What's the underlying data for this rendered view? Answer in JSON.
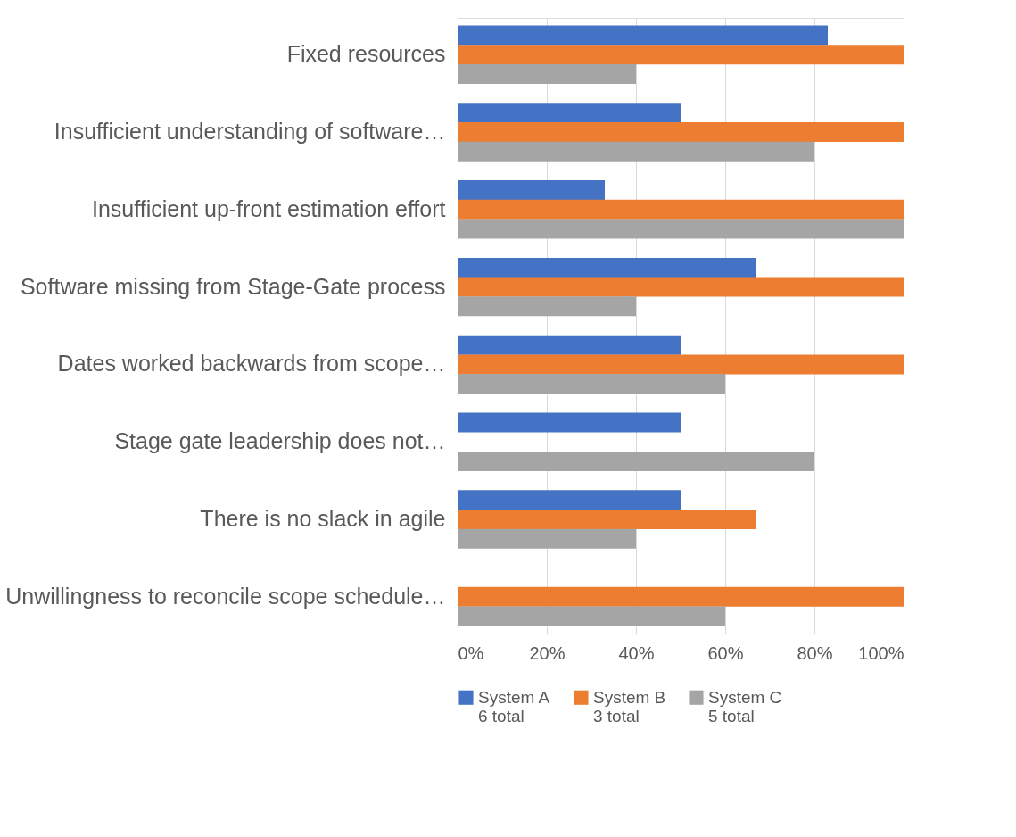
{
  "chart_data": {
    "type": "bar",
    "orientation": "horizontal",
    "categories": [
      "Fixed resources",
      "Insufficient understanding of software…",
      "Insufficient up-front estimation effort",
      "Software missing from Stage-Gate process",
      "Dates worked backwards from scope…",
      "Stage gate leadership does not…",
      "There is no slack in agile",
      "Unwillingness to reconcile scope schedule…"
    ],
    "series": [
      {
        "name": "System A\n6 total",
        "color": "#4472c4",
        "values": [
          83,
          50,
          33,
          67,
          50,
          50,
          50,
          0
        ]
      },
      {
        "name": "System B\n3 total",
        "color": "#ed7d31",
        "values": [
          100,
          100,
          100,
          100,
          100,
          0,
          67,
          100
        ]
      },
      {
        "name": "System C\n5 total",
        "color": "#a5a5a5",
        "values": [
          40,
          80,
          100,
          40,
          60,
          80,
          40,
          60
        ]
      }
    ],
    "xlim": [
      0,
      100
    ],
    "xticks": [
      {
        "value": 0,
        "label": "0%"
      },
      {
        "value": 20,
        "label": "20%"
      },
      {
        "value": 40,
        "label": "40%"
      },
      {
        "value": 60,
        "label": "60%"
      },
      {
        "value": 80,
        "label": "80%"
      },
      {
        "value": 100,
        "label": "100%"
      }
    ],
    "grid": "x",
    "legend": "bottom"
  }
}
